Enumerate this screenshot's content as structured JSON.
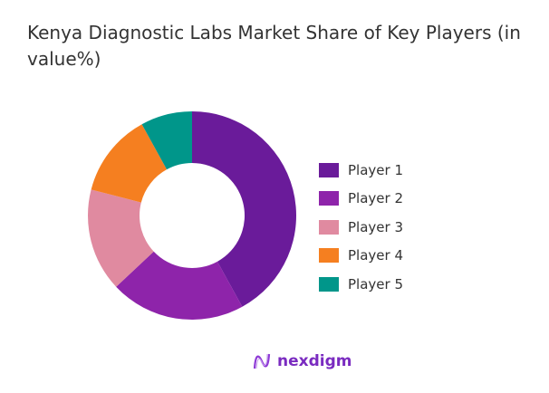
{
  "chart_data": {
    "type": "pie",
    "donut": true,
    "title": "Kenya Diagnostic Labs Market Share of Key Players (in value%)",
    "categories": [
      "Player 1",
      "Player 2",
      "Player 3",
      "Player 4",
      "Player 5"
    ],
    "values": [
      42,
      21,
      16,
      13,
      8
    ],
    "colors": [
      "#6a1b9a",
      "#8e24aa",
      "#e08aa0",
      "#f57f20",
      "#00968a"
    ],
    "legend_position": "right",
    "start_angle": "top, clockwise"
  },
  "brand": {
    "name": "nexdigm",
    "color": "#7a2bc0"
  }
}
